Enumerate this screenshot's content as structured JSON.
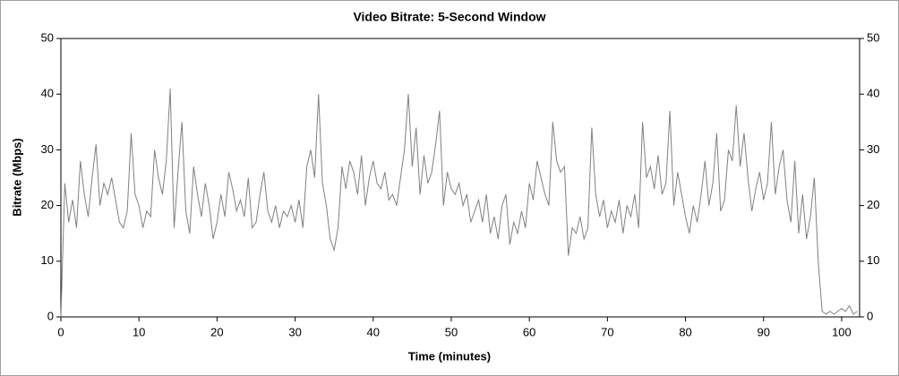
{
  "chart_data": {
    "type": "line",
    "title": "Video Bitrate: 5-Second Window",
    "xlabel": "Time (minutes)",
    "ylabel": "Bitrate (Mbps)",
    "color": "#808080",
    "grid": false,
    "xlim": [
      0,
      102.3
    ],
    "xticks": [
      0,
      10,
      20,
      30,
      40,
      50,
      60,
      70,
      80,
      90,
      100
    ],
    "ylim": [
      0,
      50
    ],
    "yticks": [
      0,
      10,
      20,
      30,
      40,
      50
    ],
    "y2lim": [
      0,
      50
    ],
    "y2ticks": [
      0,
      10,
      20,
      30,
      40,
      50
    ],
    "x": [
      0,
      0.5,
      1,
      1.5,
      2,
      2.5,
      3,
      3.5,
      4,
      4.5,
      5,
      5.5,
      6,
      6.5,
      7,
      7.5,
      8,
      8.5,
      9,
      9.5,
      10,
      10.5,
      11,
      11.5,
      12,
      12.5,
      13,
      13.5,
      14,
      14.5,
      15,
      15.5,
      16,
      16.5,
      17,
      17.5,
      18,
      18.5,
      19,
      19.5,
      20,
      20.5,
      21,
      21.5,
      22,
      22.5,
      23,
      23.5,
      24,
      24.5,
      25,
      25.5,
      26,
      26.5,
      27,
      27.5,
      28,
      28.5,
      29,
      29.5,
      30,
      30.5,
      31,
      31.5,
      32,
      32.5,
      33,
      33.5,
      34,
      34.5,
      35,
      35.5,
      36,
      36.5,
      37,
      37.5,
      38,
      38.5,
      39,
      39.5,
      40,
      40.5,
      41,
      41.5,
      42,
      42.5,
      43,
      43.5,
      44,
      44.5,
      45,
      45.5,
      46,
      46.5,
      47,
      47.5,
      48,
      48.5,
      49,
      49.5,
      50,
      50.5,
      51,
      51.5,
      52,
      52.5,
      53,
      53.5,
      54,
      54.5,
      55,
      55.5,
      56,
      56.5,
      57,
      57.5,
      58,
      58.5,
      59,
      59.5,
      60,
      60.5,
      61,
      61.5,
      62,
      62.5,
      63,
      63.5,
      64,
      64.5,
      65,
      65.5,
      66,
      66.5,
      67,
      67.5,
      68,
      68.5,
      69,
      69.5,
      70,
      70.5,
      71,
      71.5,
      72,
      72.5,
      73,
      73.5,
      74,
      74.5,
      75,
      75.5,
      76,
      76.5,
      77,
      77.5,
      78,
      78.5,
      79,
      79.5,
      80,
      80.5,
      81,
      81.5,
      82,
      82.5,
      83,
      83.5,
      84,
      84.5,
      85,
      85.5,
      86,
      86.5,
      87,
      87.5,
      88,
      88.5,
      89,
      89.5,
      90,
      90.5,
      91,
      91.5,
      92,
      92.5,
      93,
      93.5,
      94,
      94.5,
      95,
      95.5,
      96,
      96.5,
      97,
      97.5,
      98,
      98.5,
      99,
      99.5,
      100,
      100.5,
      101,
      101.5,
      102
    ],
    "values": [
      0,
      24,
      17,
      21,
      16,
      28,
      22,
      18,
      25,
      31,
      20,
      24,
      22,
      25,
      21,
      17,
      16,
      19,
      33,
      22,
      20,
      16,
      19,
      18,
      30,
      25,
      22,
      28,
      41,
      16,
      26,
      35,
      19,
      15,
      27,
      22,
      18,
      24,
      20,
      14,
      17,
      22,
      18,
      26,
      23,
      19,
      21,
      18,
      25,
      16,
      17,
      22,
      26,
      19,
      17,
      20,
      16,
      19,
      18,
      20,
      17,
      21,
      16,
      27,
      30,
      25,
      40,
      24,
      20,
      14,
      12,
      16,
      27,
      23,
      28,
      26,
      22,
      29,
      20,
      25,
      28,
      24,
      23,
      26,
      21,
      22,
      20,
      25,
      30,
      40,
      27,
      34,
      22,
      29,
      24,
      26,
      31,
      37,
      20,
      26,
      23,
      22,
      24,
      20,
      22,
      17,
      19,
      21,
      17,
      22,
      15,
      18,
      14,
      20,
      22,
      13,
      17,
      15,
      19,
      16,
      24,
      21,
      28,
      25,
      22,
      20,
      35,
      28,
      26,
      27,
      11,
      16,
      15,
      18,
      14,
      16,
      34,
      22,
      18,
      21,
      16,
      19,
      17,
      21,
      15,
      20,
      18,
      22,
      16,
      35,
      25,
      27,
      23,
      29,
      22,
      24,
      37,
      20,
      26,
      22,
      18,
      15,
      20,
      17,
      22,
      28,
      20,
      24,
      33,
      19,
      21,
      30,
      28,
      38,
      27,
      33,
      25,
      19,
      23,
      26,
      21,
      24,
      35,
      22,
      27,
      30,
      21,
      17,
      28,
      15,
      22,
      14,
      18,
      25,
      10,
      1,
      0.5,
      1,
      0.5,
      1,
      1.5,
      1,
      2,
      0.5,
      1
    ]
  }
}
